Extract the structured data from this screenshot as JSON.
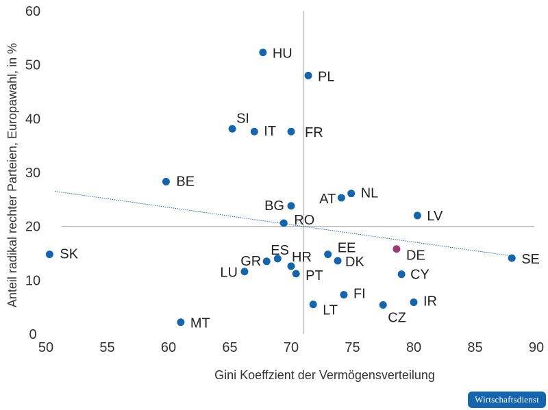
{
  "chart_data": {
    "type": "scatter",
    "xlabel": "Gini Koeffzient der Vermögensverteilung",
    "ylabel": "Anteil radikal rechter Parteien, Europawahl, in %",
    "xlim": [
      50,
      90
    ],
    "ylim": [
      0,
      60
    ],
    "xticks": [
      "50",
      "55",
      "60",
      "65",
      "70",
      "75",
      "80",
      "85",
      "90"
    ],
    "yticks": [
      "0",
      "10",
      "20",
      "30",
      "40",
      "50",
      "60"
    ],
    "reference_lines": {
      "x": 71,
      "y": 20
    },
    "trendline": {
      "x": [
        50.3,
        88
      ],
      "y": [
        26.5,
        14.5
      ]
    },
    "colors": {
      "point": "#1565ad",
      "highlight": "#9b3a78",
      "trend": "#1565ad",
      "axis": "#999999"
    },
    "points": [
      {
        "label": "HU",
        "x": 67.7,
        "y": 52.3
      },
      {
        "label": "PL",
        "x": 71.4,
        "y": 48.0
      },
      {
        "label": "SI",
        "x": 65.2,
        "y": 38.1
      },
      {
        "label": "IT",
        "x": 67.0,
        "y": 37.6
      },
      {
        "label": "FR",
        "x": 70.0,
        "y": 37.6
      },
      {
        "label": "BE",
        "x": 59.8,
        "y": 28.3
      },
      {
        "label": "NL",
        "x": 74.9,
        "y": 26.1
      },
      {
        "label": "AT",
        "x": 74.1,
        "y": 25.3
      },
      {
        "label": "BG",
        "x": 70.0,
        "y": 23.8
      },
      {
        "label": "LV",
        "x": 80.3,
        "y": 22.0
      },
      {
        "label": "RO",
        "x": 69.4,
        "y": 20.6
      },
      {
        "label": "SK",
        "x": 50.3,
        "y": 14.8
      },
      {
        "label": "DE",
        "x": 78.6,
        "y": 15.8,
        "highlight": true
      },
      {
        "label": "SE",
        "x": 88.0,
        "y": 14.1
      },
      {
        "label": "EE",
        "x": 73.0,
        "y": 14.8
      },
      {
        "label": "ES",
        "x": 68.9,
        "y": 14.0
      },
      {
        "label": "GR",
        "x": 68.0,
        "y": 13.5
      },
      {
        "label": "DK",
        "x": 73.8,
        "y": 13.6
      },
      {
        "label": "HR",
        "x": 70.0,
        "y": 12.6
      },
      {
        "label": "LU",
        "x": 66.2,
        "y": 11.6
      },
      {
        "label": "PT",
        "x": 70.4,
        "y": 11.2
      },
      {
        "label": "CY",
        "x": 79.0,
        "y": 11.1
      },
      {
        "label": "FI",
        "x": 74.3,
        "y": 7.3
      },
      {
        "label": "IR",
        "x": 80.0,
        "y": 5.9
      },
      {
        "label": "LT",
        "x": 71.8,
        "y": 5.5
      },
      {
        "label": "CZ",
        "x": 77.5,
        "y": 5.4
      },
      {
        "label": "MT",
        "x": 61.0,
        "y": 2.2
      }
    ]
  },
  "brand": {
    "label": "Wirtschaftsdienst"
  }
}
